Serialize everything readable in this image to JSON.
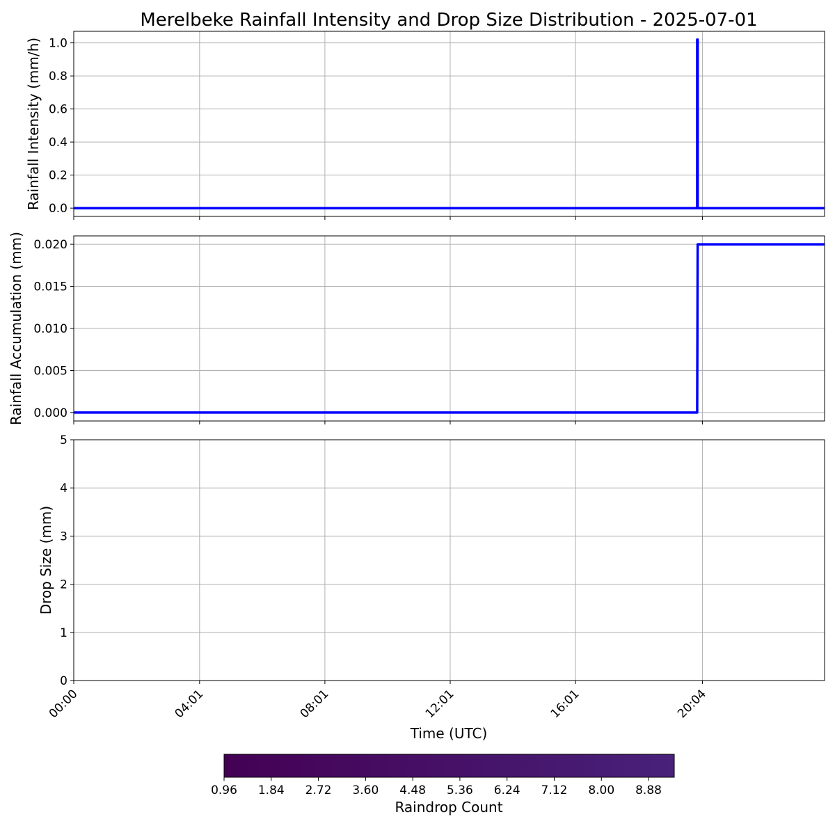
{
  "title": "Merelbeke Rainfall Intensity and Drop Size Distribution - 2025-07-01",
  "chart_data": [
    {
      "type": "line",
      "ylabel": "Rainfall Intensity (mm/h)",
      "xlim_minutes": [
        0,
        1438
      ],
      "ylim": [
        -0.05,
        1.07
      ],
      "yticks": [
        0.0,
        0.2,
        0.4,
        0.6,
        0.8,
        1.0
      ],
      "ytick_labels": [
        "0.0",
        "0.2",
        "0.4",
        "0.6",
        "0.8",
        "1.0"
      ],
      "grid": true,
      "series": [
        {
          "color": "#0000ff",
          "x_minutes": [
            0,
            1194,
            1194,
            1195,
            1195,
            1438
          ],
          "values": [
            0,
            0,
            1.02,
            1.02,
            0,
            0
          ]
        }
      ]
    },
    {
      "type": "line",
      "ylabel": "Rainfall Accumulation (mm)",
      "xlim_minutes": [
        0,
        1438
      ],
      "ylim": [
        -0.001,
        0.021
      ],
      "yticks": [
        0.0,
        0.005,
        0.01,
        0.015,
        0.02
      ],
      "ytick_labels": [
        "0.000",
        "0.005",
        "0.010",
        "0.015",
        "0.020"
      ],
      "grid": true,
      "series": [
        {
          "color": "#0000ff",
          "x_minutes": [
            0,
            1194,
            1195,
            1438
          ],
          "values": [
            0,
            0,
            0.02,
            0.02
          ]
        }
      ]
    },
    {
      "type": "heatmap",
      "ylabel": "Drop Size (mm)",
      "xlabel": "Time (UTC)",
      "xlim_minutes": [
        0,
        1438
      ],
      "ylim": [
        0,
        5
      ],
      "yticks": [
        0,
        1,
        2,
        3,
        4,
        5
      ],
      "ytick_labels": [
        "0",
        "1",
        "2",
        "3",
        "4",
        "5"
      ],
      "xticks_minutes": [
        0,
        241,
        481,
        721,
        961,
        1204
      ],
      "xtick_labels": [
        "00:00",
        "04:01",
        "08:01",
        "12:01",
        "16:01",
        "20:04"
      ],
      "grid": true,
      "colorbar": {
        "label": "Raindrop Count",
        "range": [
          0.96,
          9.36
        ],
        "ticks": [
          0.96,
          1.84,
          2.72,
          3.6,
          4.48,
          5.36,
          6.24,
          7.12,
          8.0,
          8.88
        ],
        "tick_labels": [
          "0.96",
          "1.84",
          "2.72",
          "3.60",
          "4.48",
          "5.36",
          "6.24",
          "7.12",
          "8.00",
          "8.88"
        ],
        "color_start": "#440154",
        "color_end": "#48217a"
      }
    }
  ]
}
